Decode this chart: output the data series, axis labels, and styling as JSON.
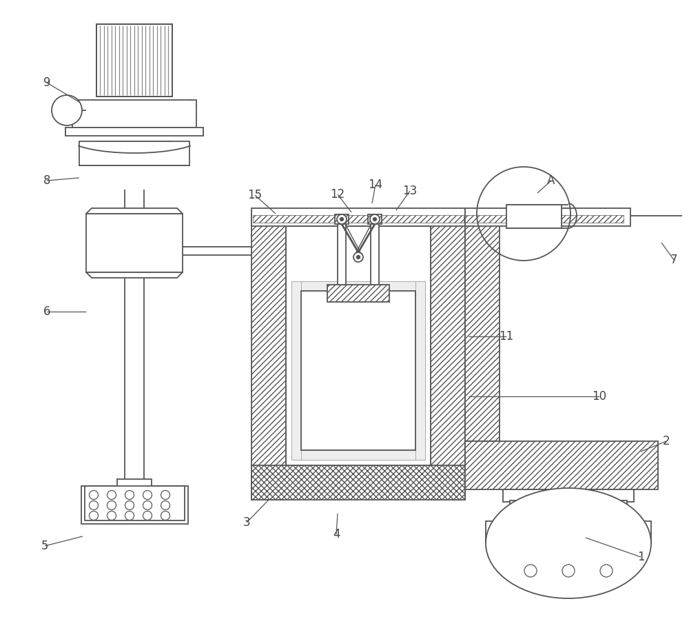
{
  "bg_color": "#ffffff",
  "line_color": "#555555",
  "label_color": "#444444",
  "label_fontsize": 12
}
